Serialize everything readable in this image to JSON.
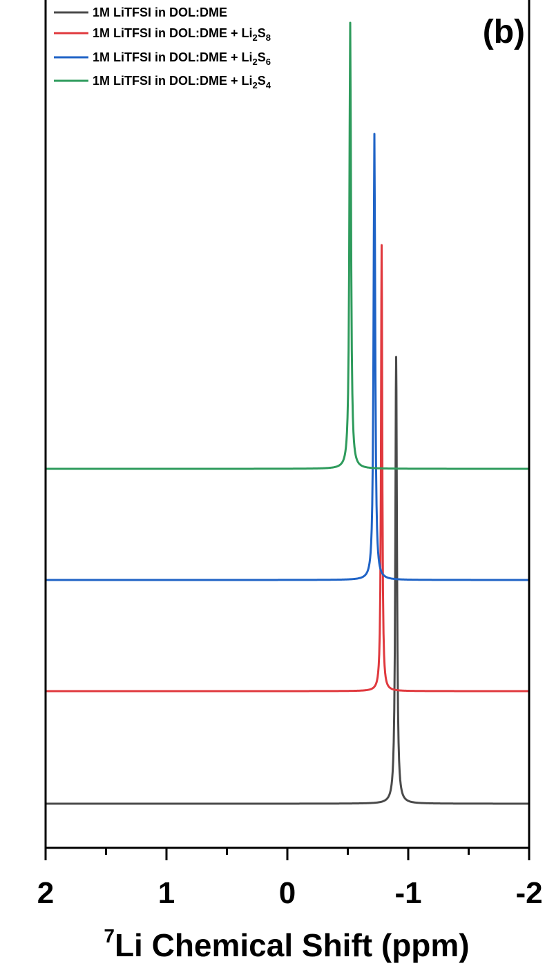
{
  "chart_data": {
    "type": "line",
    "panel_label": "(b)",
    "xlabel": {
      "superscript": "7",
      "text": "Li Chemical Shift (ppm)"
    },
    "ylabel": "",
    "xlim": [
      2,
      -2
    ],
    "x_reversed": true,
    "x_ticks": [
      2,
      1,
      0,
      -1,
      -2
    ],
    "x_tick_labels": [
      "2",
      "1",
      "0",
      "-1",
      "-2"
    ],
    "y_ticks_shown": false,
    "stacked_offset": true,
    "legend_position": "top-left",
    "grid": false,
    "series": [
      {
        "name": "1M LiTFSI in DOL:DME",
        "name_sub": "",
        "name_tail": "",
        "color": "#4a4a4a",
        "peak_ppm": -0.9,
        "relative_height": 1.0
      },
      {
        "name": "1M LiTFSI in DOL:DME + Li",
        "name_sub": "2",
        "name_tail": "S",
        "name_sub2": "8",
        "color": "#e0393e",
        "peak_ppm": -0.78,
        "relative_height": 1.0
      },
      {
        "name": "1M LiTFSI in DOL:DME + Li",
        "name_sub": "2",
        "name_tail": "S",
        "name_sub2": "6",
        "color": "#1f63c6",
        "peak_ppm": -0.72,
        "relative_height": 1.0
      },
      {
        "name": "1M LiTFSI in DOL:DME + Li",
        "name_sub": "2",
        "name_tail": "S",
        "name_sub2": "4",
        "color": "#2e9b5c",
        "peak_ppm": -0.52,
        "relative_height": 1.0
      }
    ]
  }
}
